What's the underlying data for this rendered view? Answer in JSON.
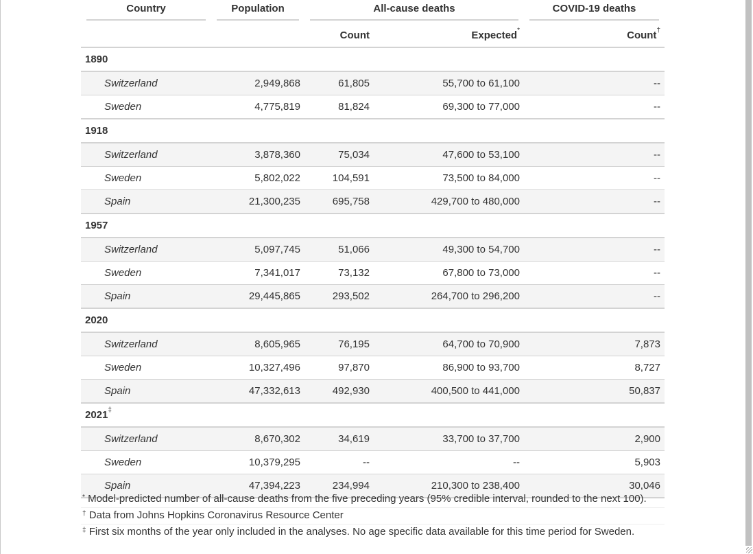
{
  "headers": {
    "country": "Country",
    "population": "Population",
    "all_cause": "All-cause deaths",
    "covid": "COVID-19 deaths",
    "count": "Count",
    "expected": "Expected",
    "expected_mark": "*",
    "covid_count": "Count",
    "covid_count_mark": "†"
  },
  "groups": [
    {
      "year": "1890",
      "mark": "",
      "rows": [
        {
          "country": "Switzerland",
          "population": "2,949,868",
          "count": "61,805",
          "expected": "55,700 to 61,100",
          "covid": "--"
        },
        {
          "country": "Sweden",
          "population": "4,775,819",
          "count": "81,824",
          "expected": "69,300 to 77,000",
          "covid": "--"
        }
      ]
    },
    {
      "year": "1918",
      "mark": "",
      "rows": [
        {
          "country": "Switzerland",
          "population": "3,878,360",
          "count": "75,034",
          "expected": "47,600 to 53,100",
          "covid": "--"
        },
        {
          "country": "Sweden",
          "population": "5,802,022",
          "count": "104,591",
          "expected": "73,500 to 84,000",
          "covid": "--"
        },
        {
          "country": "Spain",
          "population": "21,300,235",
          "count": "695,758",
          "expected": "429,700 to 480,000",
          "covid": "--"
        }
      ]
    },
    {
      "year": "1957",
      "mark": "",
      "rows": [
        {
          "country": "Switzerland",
          "population": "5,097,745",
          "count": "51,066",
          "expected": "49,300 to 54,700",
          "covid": "--"
        },
        {
          "country": "Sweden",
          "population": "7,341,017",
          "count": "73,132",
          "expected": "67,800 to 73,000",
          "covid": "--"
        },
        {
          "country": "Spain",
          "population": "29,445,865",
          "count": "293,502",
          "expected": "264,700 to 296,200",
          "covid": "--"
        }
      ]
    },
    {
      "year": "2020",
      "mark": "",
      "rows": [
        {
          "country": "Switzerland",
          "population": "8,605,965",
          "count": "76,195",
          "expected": "64,700 to 70,900",
          "covid": "7,873"
        },
        {
          "country": "Sweden",
          "population": "10,327,496",
          "count": "97,870",
          "expected": "86,900 to 93,700",
          "covid": "8,727"
        },
        {
          "country": "Spain",
          "population": "47,332,613",
          "count": "492,930",
          "expected": "400,500 to 441,000",
          "covid": "50,837"
        }
      ]
    },
    {
      "year": "2021",
      "mark": "‡",
      "rows": [
        {
          "country": "Switzerland",
          "population": "8,670,302",
          "count": "34,619",
          "expected": "33,700 to 37,700",
          "covid": "2,900"
        },
        {
          "country": "Sweden",
          "population": "10,379,295",
          "count": "--",
          "expected": "--",
          "covid": "5,903"
        },
        {
          "country": "Spain",
          "population": "47,394,223",
          "count": "234,994",
          "expected": "210,300 to 238,400",
          "covid": "30,046"
        }
      ]
    }
  ],
  "footnotes": [
    {
      "mark": "*",
      "text": "Model-predicted number of all-cause deaths from the five preceding years (95% credible interval, rounded to the next 100)."
    },
    {
      "mark": "†",
      "text": "Data from Johns Hopkins Coronavirus Resource Center"
    },
    {
      "mark": "‡",
      "text": "First six months of the year only included in the analyses. No age specific data available for this time period for Sweden."
    }
  ]
}
